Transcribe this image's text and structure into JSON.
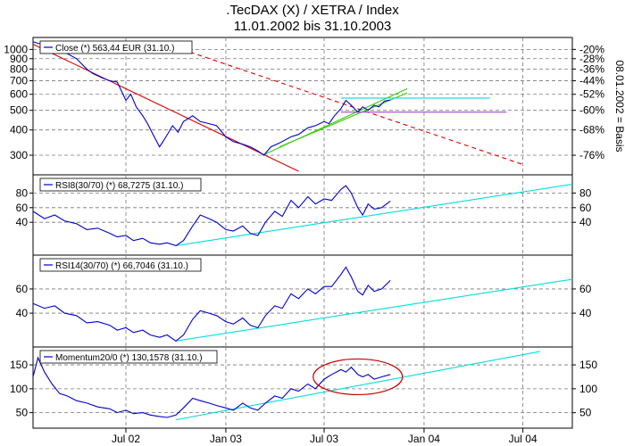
{
  "header": {
    "title_line1": ".TecDAX (X) / XETRA / Index",
    "title_line2": "11.01.2002 bis 31.10.2003"
  },
  "colors": {
    "price": "#0000cc",
    "trend_red": "#dd0000",
    "trend_green": "#33cc00",
    "channel_cyan": "#00dddd",
    "level_magenta": "#aa44cc",
    "ellipse": "#cc0000",
    "grid": "#777777"
  },
  "x_axis": {
    "tick_labels": [
      "Jul 02",
      "Jan 03",
      "Jul 03",
      "Jan 04",
      "Jul 04"
    ],
    "tick_dates": [
      "2002-07-01",
      "2003-01-01",
      "2003-07-01",
      "2004-01-01",
      "2004-07-01"
    ],
    "range": [
      "2002-01-11",
      "2004-09-30"
    ]
  },
  "chart_data": [
    {
      "type": "line",
      "legend": "Close (*) 563,44 EUR (31.10.)",
      "y_scale": "log",
      "ylim": [
        250,
        1100
      ],
      "left_ticks": [
        "1000",
        "900",
        "800",
        "700",
        "600",
        "500",
        "400",
        "300"
      ],
      "right_ticks": [
        "-20%",
        "-28%",
        "-36%",
        "-44%",
        "-52%",
        "-60%",
        "-68%",
        "-76%"
      ],
      "right_axis_label": "08.01.2002 = Basis",
      "series": [
        {
          "x": [
            "2002-01-11",
            "2002-02-01",
            "2002-03-01",
            "2002-04-01",
            "2002-04-20",
            "2002-05-01",
            "2002-05-20",
            "2002-06-01",
            "2002-06-15",
            "2002-07-01",
            "2002-07-10",
            "2002-07-20",
            "2002-08-01",
            "2002-08-10",
            "2002-08-20",
            "2002-09-01",
            "2002-09-10",
            "2002-09-25",
            "2002-10-05",
            "2002-10-15",
            "2002-11-01",
            "2002-11-15",
            "2002-12-01",
            "2002-12-15",
            "2003-01-01",
            "2003-01-15",
            "2003-02-01",
            "2003-02-15",
            "2003-03-01",
            "2003-03-12",
            "2003-03-25",
            "2003-04-10",
            "2003-05-01",
            "2003-05-15",
            "2003-06-01",
            "2003-06-15",
            "2003-07-01",
            "2003-07-10",
            "2003-07-20",
            "2003-08-01",
            "2003-08-10",
            "2003-08-20",
            "2003-09-01",
            "2003-09-10",
            "2003-09-20",
            "2003-10-01",
            "2003-10-10",
            "2003-10-20",
            "2003-10-31"
          ],
          "values": [
            1090,
            1050,
            1000,
            900,
            800,
            760,
            720,
            700,
            690,
            560,
            600,
            520,
            470,
            430,
            380,
            330,
            360,
            420,
            390,
            440,
            470,
            440,
            430,
            420,
            370,
            350,
            340,
            330,
            315,
            300,
            330,
            345,
            370,
            380,
            410,
            420,
            440,
            430,
            470,
            510,
            560,
            530,
            490,
            520,
            500,
            530,
            520,
            555,
            563
          ]
        }
      ],
      "lines": [
        {
          "name": "red-trend",
          "x": [
            "2002-01-11",
            "2003-05-15"
          ],
          "y": [
            1060,
            250
          ],
          "dashed": false
        },
        {
          "name": "red-dashed-trend",
          "x": [
            "2002-09-01",
            "2004-07-01"
          ],
          "y": [
            1090,
            270
          ],
          "dashed": true
        },
        {
          "name": "green-trend-1",
          "x": [
            "2003-03-10",
            "2003-12-01"
          ],
          "y": [
            300,
            640
          ],
          "dashed": false
        },
        {
          "name": "green-trend-2",
          "x": [
            "2003-04-10",
            "2003-12-01"
          ],
          "y": [
            330,
            610
          ],
          "dashed": false
        },
        {
          "name": "cyan-level",
          "x": [
            "2003-08-01",
            "2004-05-01"
          ],
          "y": [
            575,
            575
          ],
          "dashed": false
        },
        {
          "name": "magenta-level",
          "x": [
            "2003-08-01",
            "2004-06-01"
          ],
          "y": [
            490,
            490
          ],
          "dashed": false
        }
      ]
    },
    {
      "type": "line",
      "legend": "RSI8(30/70) (*) 68,7275 (31.10.)",
      "ylim": [
        0,
        100
      ],
      "left_ticks": [
        "80",
        "60",
        "40"
      ],
      "right_ticks": [
        "80",
        "60",
        "40"
      ],
      "series": [
        {
          "x": [
            "2002-01-11",
            "2002-02-01",
            "2002-02-20",
            "2002-03-10",
            "2002-04-01",
            "2002-04-20",
            "2002-05-10",
            "2002-06-01",
            "2002-06-15",
            "2002-07-01",
            "2002-07-15",
            "2002-08-01",
            "2002-08-15",
            "2002-09-01",
            "2002-09-15",
            "2002-10-01",
            "2002-10-15",
            "2002-11-01",
            "2002-11-15",
            "2002-12-01",
            "2002-12-15",
            "2003-01-01",
            "2003-01-15",
            "2003-02-01",
            "2003-02-15",
            "2003-03-01",
            "2003-03-15",
            "2003-04-01",
            "2003-04-15",
            "2003-05-01",
            "2003-05-15",
            "2003-06-01",
            "2003-06-15",
            "2003-07-01",
            "2003-07-15",
            "2003-08-01",
            "2003-08-10",
            "2003-08-20",
            "2003-09-01",
            "2003-09-10",
            "2003-09-20",
            "2003-10-01",
            "2003-10-15",
            "2003-10-31"
          ],
          "values": [
            55,
            45,
            50,
            42,
            38,
            30,
            32,
            25,
            20,
            22,
            15,
            18,
            12,
            10,
            12,
            8,
            15,
            35,
            50,
            45,
            40,
            30,
            28,
            35,
            25,
            22,
            40,
            55,
            48,
            70,
            60,
            75,
            65,
            72,
            70,
            85,
            90,
            80,
            60,
            50,
            65,
            58,
            60,
            69
          ]
        }
      ],
      "lines": [
        {
          "name": "cyan-support",
          "x": [
            "2002-10-01",
            "2004-09-30"
          ],
          "y": [
            8,
            92
          ],
          "dashed": false
        }
      ]
    },
    {
      "type": "line",
      "legend": "RSI14(30/70) (*) 66,7046 (31.10.)",
      "ylim": [
        15,
        85
      ],
      "left_ticks": [
        "60",
        "40"
      ],
      "right_ticks": [
        "60",
        "40"
      ],
      "series": [
        {
          "x": [
            "2002-01-11",
            "2002-02-01",
            "2002-02-20",
            "2002-03-10",
            "2002-04-01",
            "2002-04-20",
            "2002-05-10",
            "2002-06-01",
            "2002-06-15",
            "2002-07-01",
            "2002-07-15",
            "2002-08-01",
            "2002-08-15",
            "2002-09-01",
            "2002-09-15",
            "2002-10-01",
            "2002-10-15",
            "2002-11-01",
            "2002-11-15",
            "2002-12-01",
            "2002-12-15",
            "2003-01-01",
            "2003-01-15",
            "2003-02-01",
            "2003-02-15",
            "2003-03-01",
            "2003-03-15",
            "2003-04-01",
            "2003-04-15",
            "2003-05-01",
            "2003-05-15",
            "2003-06-01",
            "2003-06-15",
            "2003-07-01",
            "2003-07-15",
            "2003-08-01",
            "2003-08-10",
            "2003-08-20",
            "2003-09-01",
            "2003-09-10",
            "2003-09-20",
            "2003-10-01",
            "2003-10-15",
            "2003-10-31"
          ],
          "values": [
            48,
            44,
            46,
            40,
            38,
            32,
            33,
            30,
            26,
            28,
            24,
            26,
            22,
            20,
            22,
            17,
            22,
            35,
            42,
            40,
            38,
            33,
            31,
            36,
            30,
            28,
            38,
            46,
            44,
            56,
            52,
            60,
            56,
            62,
            62,
            72,
            78,
            70,
            58,
            55,
            63,
            58,
            60,
            67
          ]
        }
      ],
      "lines": [
        {
          "name": "cyan-support",
          "x": [
            "2002-10-01",
            "2004-09-30"
          ],
          "y": [
            17,
            68
          ],
          "dashed": false
        }
      ]
    },
    {
      "type": "line",
      "legend": "Momentum20/0 (*) 130,1578 (31.10.)",
      "ylim": [
        25,
        180
      ],
      "left_ticks": [
        "150",
        "100",
        "50"
      ],
      "right_ticks": [
        "150",
        "100",
        "50"
      ],
      "series": [
        {
          "x": [
            "2002-01-11",
            "2002-01-20",
            "2002-02-01",
            "2002-02-15",
            "2002-03-01",
            "2002-03-15",
            "2002-04-01",
            "2002-04-20",
            "2002-05-10",
            "2002-06-01",
            "2002-06-15",
            "2002-07-01",
            "2002-07-15",
            "2002-08-01",
            "2002-08-15",
            "2002-09-01",
            "2002-09-15",
            "2002-10-01",
            "2002-10-15",
            "2002-11-01",
            "2002-11-15",
            "2002-12-01",
            "2002-12-15",
            "2003-01-01",
            "2003-01-15",
            "2003-02-01",
            "2003-02-15",
            "2003-03-01",
            "2003-03-15",
            "2003-04-01",
            "2003-04-15",
            "2003-05-01",
            "2003-05-15",
            "2003-06-01",
            "2003-06-15",
            "2003-07-01",
            "2003-07-15",
            "2003-08-01",
            "2003-08-10",
            "2003-08-20",
            "2003-09-01",
            "2003-09-10",
            "2003-09-20",
            "2003-10-01",
            "2003-10-15",
            "2003-10-31"
          ],
          "values": [
            125,
            165,
            135,
            110,
            90,
            85,
            75,
            70,
            62,
            58,
            50,
            55,
            48,
            50,
            45,
            42,
            40,
            45,
            60,
            80,
            75,
            70,
            65,
            60,
            55,
            70,
            60,
            55,
            70,
            85,
            80,
            100,
            95,
            110,
            100,
            120,
            130,
            140,
            135,
            145,
            130,
            125,
            130,
            120,
            125,
            130
          ]
        }
      ],
      "lines": [
        {
          "name": "cyan-support",
          "x": [
            "2002-10-01",
            "2004-08-01"
          ],
          "y": [
            35,
            178
          ],
          "dashed": false
        }
      ],
      "annotation": {
        "shape": "ellipse",
        "cx": "2003-09-01",
        "cy": 125,
        "note": "red ellipse around recent momentum peak"
      }
    }
  ]
}
